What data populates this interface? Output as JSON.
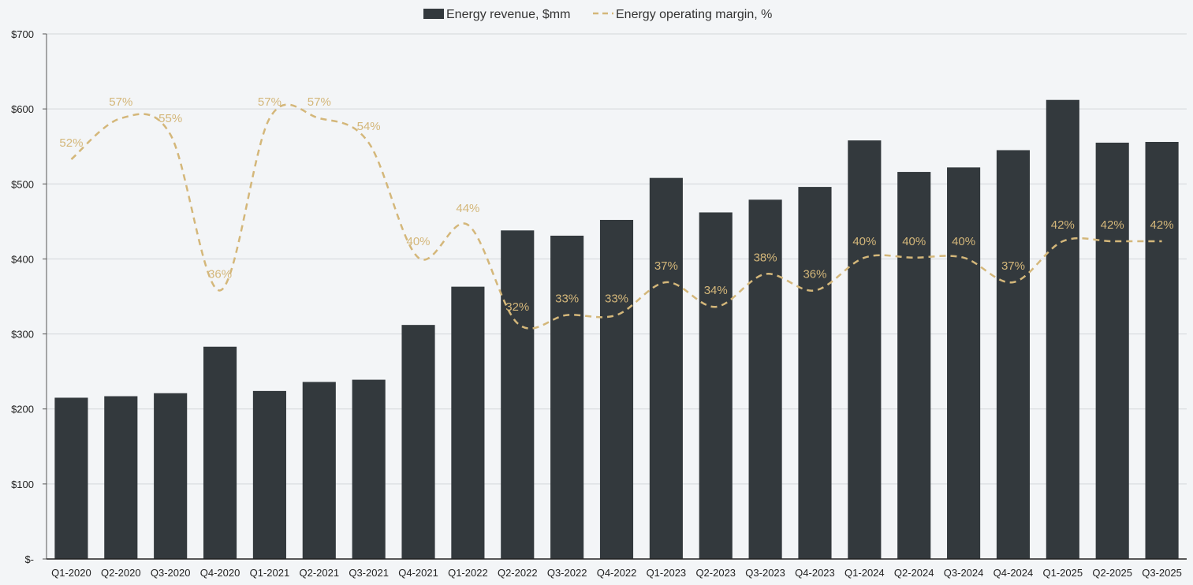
{
  "chart_data": {
    "type": "bar",
    "title": "",
    "xlabel": "",
    "ylabel": "",
    "ylim": [
      0,
      700
    ],
    "y_ticks": [
      0,
      100,
      200,
      300,
      400,
      500,
      600,
      700
    ],
    "y_tick_labels": [
      "$-",
      "$100",
      "$200",
      "$300",
      "$400",
      "$500",
      "$600",
      "$700"
    ],
    "grid": true,
    "legend_position": "top-center",
    "categories": [
      "Q1-2020",
      "Q2-2020",
      "Q3-2020",
      "Q4-2020",
      "Q1-2021",
      "Q2-2021",
      "Q3-2021",
      "Q4-2021",
      "Q1-2022",
      "Q2-2022",
      "Q3-2022",
      "Q4-2022",
      "Q1-2023",
      "Q2-2023",
      "Q3-2023",
      "Q4-2023",
      "Q1-2024",
      "Q2-2024",
      "Q3-2024",
      "Q4-2024",
      "Q1-2025",
      "Q2-2025",
      "Q3-2025"
    ],
    "series": [
      {
        "name": "Energy revenue, $mm",
        "kind": "bar",
        "color": "#33393d",
        "values": [
          215,
          217,
          221,
          283,
          224,
          236,
          239,
          312,
          363,
          438,
          431,
          452,
          508,
          462,
          479,
          496,
          558,
          516,
          522,
          545,
          612,
          555,
          556
        ]
      },
      {
        "name": "Energy operating margin, %",
        "kind": "line",
        "style": "dashed",
        "color": "#d4b77a",
        "values": [
          52,
          57,
          55,
          36,
          57,
          57,
          54,
          40,
          44,
          32,
          33,
          33,
          37,
          34,
          38,
          36,
          40,
          40,
          40,
          37,
          42,
          42,
          42
        ],
        "labels": [
          "52%",
          "57%",
          "55%",
          "36%",
          "57%",
          "57%",
          "54%",
          "40%",
          "44%",
          "32%",
          "33%",
          "33%",
          "37%",
          "34%",
          "38%",
          "36%",
          "40%",
          "40%",
          "40%",
          "37%",
          "42%",
          "42%",
          "42%"
        ]
      }
    ]
  }
}
